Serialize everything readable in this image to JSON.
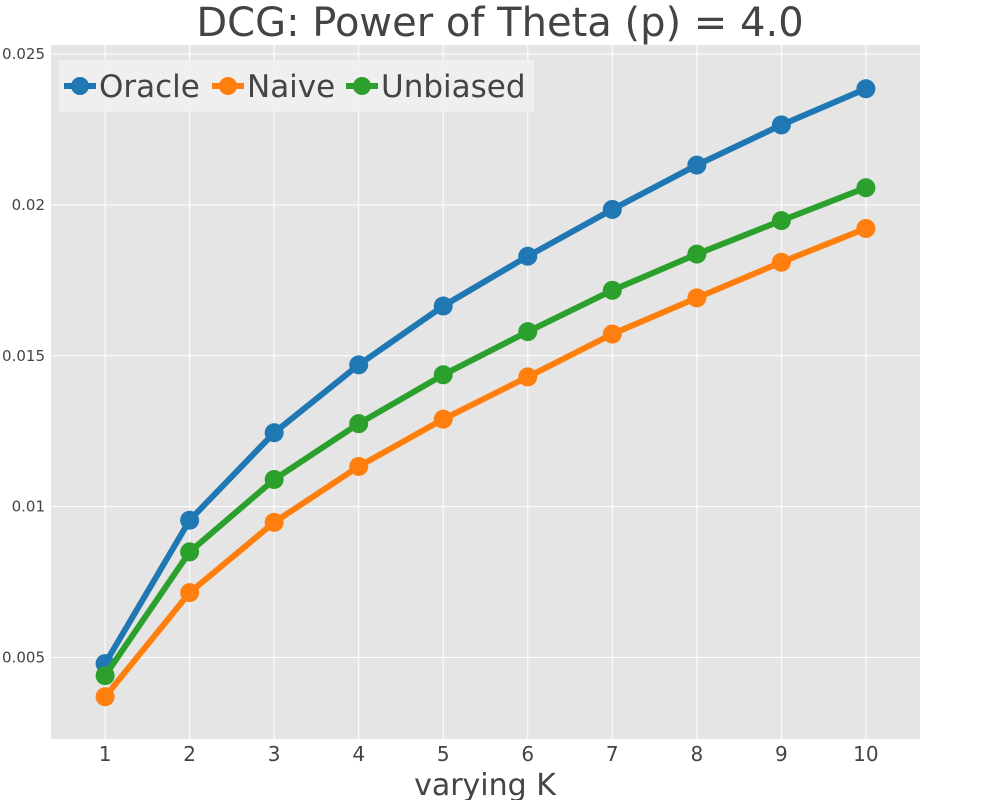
{
  "chart_data": {
    "type": "line",
    "title": "DCG: Power of Theta (p) = 4.0",
    "xlabel": "varying K",
    "ylabel": "",
    "x": [
      1,
      2,
      3,
      4,
      5,
      6,
      7,
      8,
      9,
      10
    ],
    "xtick_labels": [
      "1",
      "2",
      "3",
      "4",
      "5",
      "6",
      "7",
      "8",
      "9",
      "10"
    ],
    "ylim": [
      0.0023,
      0.0253
    ],
    "yticks": [
      0.005,
      0.01,
      0.015,
      0.02,
      0.025
    ],
    "ytick_labels": [
      "0.005",
      "0.01",
      "0.015",
      "0.02",
      "0.025"
    ],
    "grid": true,
    "legend_position": "top-left",
    "series": [
      {
        "name": "Oracle",
        "color": "#1f77b4",
        "values": [
          0.0048,
          0.00955,
          0.01245,
          0.0147,
          0.01665,
          0.0183,
          0.01985,
          0.02132,
          0.02265,
          0.02385
        ]
      },
      {
        "name": "Naive",
        "color": "#ff7f0e",
        "values": [
          0.0037,
          0.00715,
          0.00948,
          0.01133,
          0.0129,
          0.0143,
          0.01572,
          0.01692,
          0.0181,
          0.01922
        ]
      },
      {
        "name": "Unbiased",
        "color": "#2ca02c",
        "values": [
          0.0044,
          0.0085,
          0.0109,
          0.01275,
          0.01437,
          0.0158,
          0.01717,
          0.01837,
          0.01948,
          0.02057
        ]
      }
    ]
  }
}
